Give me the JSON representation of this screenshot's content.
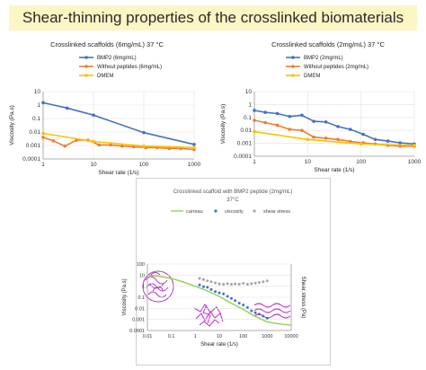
{
  "page_title": "Shear-thinning properties of the crosslinked biomaterials",
  "colors": {
    "banner_bg": "#FCF5C4",
    "blue": "#4472C4",
    "orange": "#ED7D31",
    "yellow": "#FFC000",
    "green": "#8FD14F",
    "gray": "#A5A5A5"
  },
  "chart_data": [
    {
      "type": "line",
      "title": "Crosslinked scaffolds (6mg/mL) 37 °C",
      "xlabel": "Shear rate (1/s)",
      "ylabel": "Viscosity (Pa.s)",
      "x_scale": "log",
      "y_scale": "log",
      "xlim": [
        1,
        1000
      ],
      "ylim": [
        0.0001,
        10
      ],
      "x_ticks": [
        "1",
        "10",
        "100",
        "1000"
      ],
      "y_ticks": [
        "0.0001",
        "0.001",
        "0.01",
        "0.1",
        "1",
        "10"
      ],
      "legend": "top-left",
      "series": [
        {
          "name": "BMP2 (6mg/mL)",
          "color": "#4472C4",
          "x": [
            1,
            3,
            10,
            100,
            1000
          ],
          "y": [
            1.5,
            0.6,
            0.18,
            0.009,
            0.0012
          ]
        },
        {
          "name": "Without peptides (6mg/mL)",
          "color": "#ED7D31",
          "x": [
            1,
            1.6,
            2.7,
            4.6,
            7.8,
            13,
            22,
            37,
            63,
            110,
            185,
            320,
            540,
            1000
          ],
          "y": [
            0.004,
            0.0022,
            0.0009,
            0.0025,
            0.0025,
            0.0011,
            0.0011,
            0.0009,
            0.0008,
            0.0007,
            0.0007,
            0.0006,
            0.0006,
            0.0005
          ]
        },
        {
          "name": "DMEM",
          "color": "#FFC000",
          "x": [
            1,
            10,
            100,
            1000
          ],
          "y": [
            0.008,
            0.002,
            0.0009,
            0.0007
          ]
        }
      ]
    },
    {
      "type": "line",
      "title": "Crosslinked scaffolds (2mg/mL) 37 °C",
      "xlabel": "Shear rate (1/s)",
      "ylabel": "Viscosity (Pa.s)",
      "x_scale": "log",
      "y_scale": "log",
      "xlim": [
        1,
        1000
      ],
      "ylim": [
        0.0001,
        10
      ],
      "x_ticks": [
        "1",
        "10",
        "100",
        "1000"
      ],
      "y_ticks": [
        "0.0001",
        "0.001",
        "0.01",
        "0.1",
        "1",
        "10"
      ],
      "legend": "top-left",
      "series": [
        {
          "name": "BMP2 (2mg/mL)",
          "color": "#4472C4",
          "x": [
            1,
            1.6,
            2.7,
            4.6,
            7.8,
            13,
            22,
            37,
            63,
            110,
            185,
            320,
            540,
            1000
          ],
          "y": [
            0.35,
            0.25,
            0.2,
            0.12,
            0.15,
            0.05,
            0.045,
            0.02,
            0.012,
            0.005,
            0.002,
            0.0015,
            0.0011,
            0.0009
          ]
        },
        {
          "name": "Without peptides (2mg/mL)",
          "color": "#ED7D31",
          "x": [
            1,
            1.6,
            2.7,
            4.6,
            7.8,
            13,
            22,
            37,
            63,
            110,
            185,
            320,
            540,
            1000
          ],
          "y": [
            0.06,
            0.04,
            0.025,
            0.012,
            0.01,
            0.003,
            0.0025,
            0.002,
            0.0014,
            0.0011,
            0.0009,
            0.0007,
            0.0006,
            0.0006
          ]
        },
        {
          "name": "DMEM",
          "color": "#FFC000",
          "x": [
            1,
            10,
            100,
            1000
          ],
          "y": [
            0.008,
            0.002,
            0.0009,
            0.0007
          ]
        }
      ]
    },
    {
      "type": "scatter",
      "title": "Crosslinked scaffold with BMP2 peptide (2mg/mL)",
      "subtitle": "37°C",
      "xlabel": "Shear rate (1/s)",
      "ylabel": "Viscosity (Pa.s)",
      "y2label": "Shear stress (Pa)",
      "x_scale": "log",
      "y_scale": "log",
      "xlim": [
        0.01,
        10000
      ],
      "ylim": [
        0.0001,
        100
      ],
      "x_ticks": [
        "0.01",
        "0.1",
        "1",
        "10",
        "100",
        "1000",
        "10000"
      ],
      "y_ticks": [
        "0.0001",
        "0.001",
        "0.01",
        "0.1",
        "1",
        "10",
        "100"
      ],
      "legend": "top",
      "series": [
        {
          "name": "carreau",
          "color": "#8FD14F",
          "style": "line",
          "x": [
            0.01,
            0.03,
            0.1,
            0.3,
            1,
            3,
            10,
            30,
            100,
            300,
            1000,
            3000,
            10000
          ],
          "y": [
            10,
            8,
            5,
            2.5,
            1,
            0.4,
            0.12,
            0.03,
            0.008,
            0.002,
            0.0006,
            0.0004,
            0.0003
          ]
        },
        {
          "name": "viscosity",
          "color": "#4472C4",
          "style": "marker",
          "x": [
            1.5,
            2.2,
            3.2,
            4.6,
            6.8,
            10,
            15,
            22,
            32,
            46,
            68,
            100,
            150,
            220,
            320,
            460,
            680,
            1000
          ],
          "y": [
            1.3,
            0.9,
            0.8,
            0.5,
            0.33,
            0.25,
            0.2,
            0.12,
            0.08,
            0.05,
            0.03,
            0.02,
            0.012,
            0.006,
            0.004,
            0.003,
            0.002,
            0.0013
          ]
        },
        {
          "name": "shear stress",
          "color": "#A5A5A5",
          "style": "marker",
          "x": [
            1.5,
            2.2,
            3.2,
            4.6,
            6.8,
            10,
            15,
            22,
            32,
            46,
            68,
            100,
            150,
            220,
            320,
            460,
            680,
            1000
          ],
          "y": [
            5,
            4,
            3,
            2.5,
            2,
            1.6,
            1.5,
            1.7,
            1.5,
            1.6,
            1.5,
            1.8,
            1.5,
            1.7,
            1.9,
            2.2,
            2.5,
            3
          ]
        }
      ]
    }
  ]
}
